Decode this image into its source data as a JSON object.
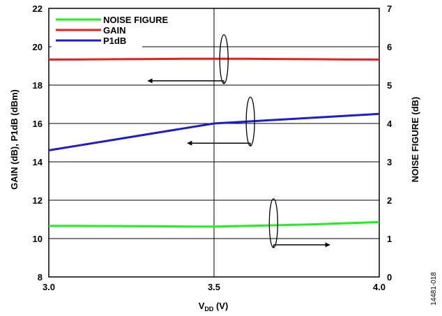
{
  "chart_data": {
    "type": "line",
    "x": [
      3.0,
      3.1,
      3.2,
      3.3,
      3.4,
      3.5,
      3.6,
      3.7,
      3.8,
      3.9,
      4.0
    ],
    "xlim": [
      3.0,
      4.0
    ],
    "xticks": [
      "3.0",
      "3.5",
      "4.0"
    ],
    "xtick_values": [
      3.0,
      3.5,
      4.0
    ],
    "xlabel_main": "V",
    "xlabel_sub": "DD",
    "xlabel_unit": " (V)",
    "ylabel_left": "GAIN (dB), P1dB (dBm)",
    "ylim_left": [
      8,
      22
    ],
    "yticks_left": [
      "8",
      "10",
      "12",
      "14",
      "16",
      "18",
      "20",
      "22"
    ],
    "ytick_values_left": [
      8,
      10,
      12,
      14,
      16,
      18,
      20,
      22
    ],
    "ylabel_right": "NOISE FIGURE (dB)",
    "ylim_right": [
      0,
      7
    ],
    "yticks_right": [
      "0",
      "1",
      "2",
      "3",
      "4",
      "5",
      "6",
      "7"
    ],
    "ytick_values_right": [
      0,
      1,
      2,
      3,
      4,
      5,
      6,
      7
    ],
    "grid": true,
    "legend_position": "top-left",
    "series": [
      {
        "name": "NOISE FIGURE",
        "axis": "right",
        "color": "#22ee22",
        "values": [
          1.33,
          1.33,
          1.325,
          1.32,
          1.315,
          1.31,
          1.33,
          1.35,
          1.37,
          1.4,
          1.43
        ]
      },
      {
        "name": "GAIN",
        "axis": "left",
        "color": "#ee1c1c",
        "values": [
          19.33,
          19.34,
          19.35,
          19.36,
          19.37,
          19.37,
          19.37,
          19.36,
          19.35,
          19.34,
          19.33
        ]
      },
      {
        "name": "P1dB",
        "axis": "left",
        "color": "#1c1cd0",
        "values": [
          14.6,
          14.88,
          15.16,
          15.44,
          15.72,
          16.0,
          16.1,
          16.2,
          16.3,
          16.4,
          16.5
        ]
      }
    ],
    "annotations": [
      {
        "series": "GAIN",
        "ellipse_x": 3.53,
        "ellipse_y": 19.35,
        "arrow": "left",
        "arrow_to_x": 3.3
      },
      {
        "series": "P1dB",
        "ellipse_x": 3.61,
        "ellipse_y": 16.1,
        "arrow": "left",
        "arrow_to_x": 3.42
      },
      {
        "series": "NOISE FIGURE",
        "ellipse_x": 3.68,
        "ellipse_y": 1.4,
        "arrow": "right",
        "arrow_to_x": 3.85
      }
    ]
  },
  "figure_id": "14481-018"
}
